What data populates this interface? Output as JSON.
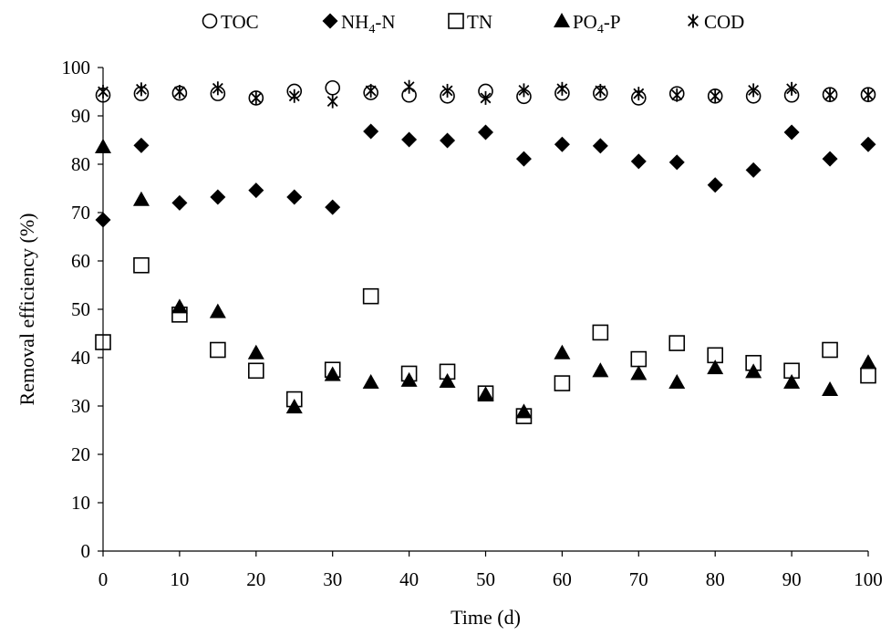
{
  "chart_data": {
    "type": "scatter",
    "xlabel": "Time (d)",
    "ylabel": "Removal efficiency (%)",
    "xlim": [
      0,
      100
    ],
    "ylim": [
      0,
      100
    ],
    "xticks": [
      0,
      10,
      20,
      30,
      40,
      50,
      60,
      70,
      80,
      90,
      100
    ],
    "yticks": [
      0,
      10,
      20,
      30,
      40,
      50,
      60,
      70,
      80,
      90,
      100
    ],
    "grid": false,
    "legend_position": "top",
    "x": [
      0,
      5,
      10,
      15,
      20,
      25,
      30,
      35,
      40,
      45,
      50,
      55,
      60,
      65,
      70,
      75,
      80,
      85,
      90,
      95,
      100
    ],
    "series": [
      {
        "name": "TOC",
        "marker": "circle-open",
        "values": [
          94.3,
          94.6,
          94.7,
          94.6,
          93.7,
          95.1,
          95.8,
          94.8,
          94.3,
          94.1,
          95.1,
          94.0,
          94.7,
          94.7,
          93.7,
          94.6,
          94.1,
          94.1,
          94.3,
          94.4,
          94.4
        ]
      },
      {
        "name": "NH4-N",
        "marker": "diamond-filled",
        "values": [
          68.5,
          83.9,
          72.0,
          73.2,
          74.6,
          73.2,
          71.1,
          86.8,
          85.1,
          84.9,
          86.6,
          81.1,
          84.1,
          83.8,
          80.6,
          80.4,
          75.7,
          78.8,
          86.6,
          81.1,
          84.1
        ]
      },
      {
        "name": "TN",
        "marker": "square-open",
        "values": [
          43.2,
          59.1,
          48.9,
          41.6,
          37.3,
          31.4,
          37.5,
          52.7,
          36.7,
          37.1,
          32.6,
          27.9,
          34.7,
          45.2,
          39.7,
          43.0,
          40.5,
          38.9,
          37.3,
          41.6,
          36.3
        ]
      },
      {
        "name": "PO4-P",
        "marker": "triangle-filled",
        "values": [
          83.6,
          72.7,
          50.5,
          49.5,
          41.0,
          29.8,
          36.5,
          34.9,
          35.3,
          35.1,
          32.4,
          28.8,
          41.0,
          37.3,
          36.7,
          34.9,
          37.9,
          37.1,
          34.9,
          33.4,
          39.0
        ]
      },
      {
        "name": "COD",
        "marker": "asterisk",
        "values": [
          95.0,
          95.5,
          95.0,
          95.7,
          93.7,
          94.1,
          93.0,
          95.2,
          96.0,
          95.2,
          93.7,
          95.3,
          95.6,
          95.2,
          94.6,
          94.3,
          94.1,
          95.3,
          95.6,
          94.3,
          94.3
        ]
      }
    ],
    "legend": [
      {
        "main": "TOC",
        "sub": "",
        "tail": ""
      },
      {
        "main": "NH",
        "sub": "4",
        "tail": "-N"
      },
      {
        "main": "TN",
        "sub": "",
        "tail": ""
      },
      {
        "main": "PO",
        "sub": "4",
        "tail": "-P"
      },
      {
        "main": "COD",
        "sub": "",
        "tail": ""
      }
    ]
  }
}
